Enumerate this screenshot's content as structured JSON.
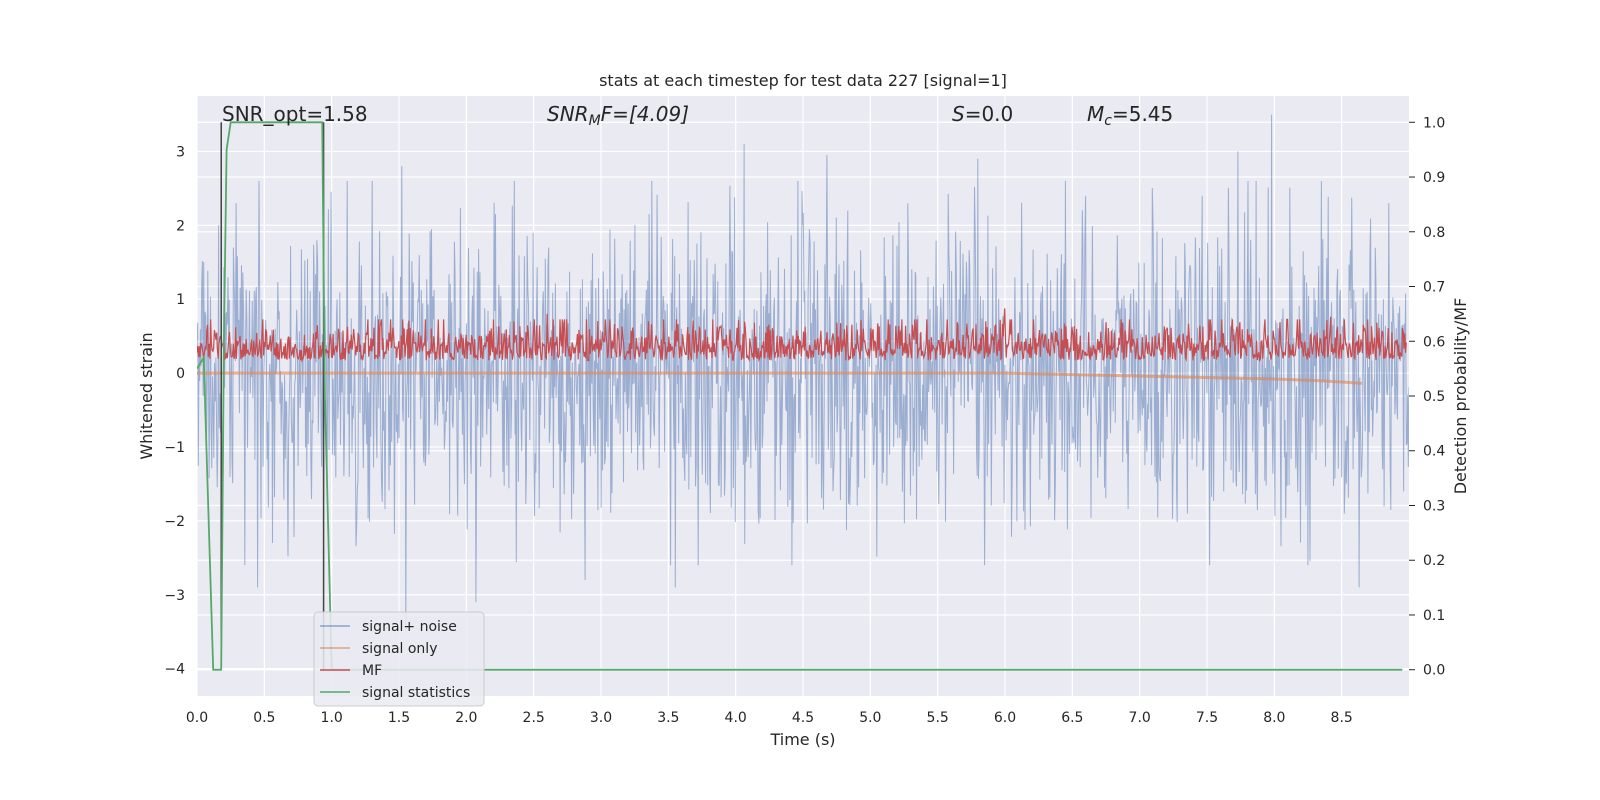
{
  "chart_data": {
    "type": "line",
    "title": "stats at each timestep for test data 227 [signal=1]",
    "xlabel": "Time (s)",
    "ylabel": "Whitened strain",
    "y2label": "Detection probability/MF",
    "xlim": [
      0.0,
      9.0
    ],
    "ylim": [
      -4.37,
      3.75
    ],
    "y2lim": [
      -0.048,
      1.048
    ],
    "x_ticks": [
      0.0,
      0.5,
      1.0,
      1.5,
      2.0,
      2.5,
      3.0,
      3.5,
      4.0,
      4.5,
      5.0,
      5.5,
      6.0,
      6.5,
      7.0,
      7.5,
      8.0,
      8.5
    ],
    "x_tick_labels": [
      "0.0",
      "0.5",
      "1.0",
      "1.5",
      "2.0",
      "2.5",
      "3.0",
      "3.5",
      "4.0",
      "4.5",
      "5.0",
      "5.5",
      "6.0",
      "6.5",
      "7.0",
      "7.5",
      "8.0",
      "8.5"
    ],
    "y_ticks": [
      3,
      2,
      1,
      0,
      -1,
      -2,
      -3,
      -4
    ],
    "y_tick_labels": [
      "3",
      "2",
      "1",
      "0",
      "−1",
      "−2",
      "−3",
      "−4"
    ],
    "y2_ticks": [
      1.0,
      0.9,
      0.8,
      0.7,
      0.6,
      0.5,
      0.4,
      0.3,
      0.2,
      0.1,
      0.0
    ],
    "y2_tick_labels": [
      "1.0",
      "0.9",
      "0.8",
      "0.7",
      "0.6",
      "0.5",
      "0.4",
      "0.3",
      "0.2",
      "0.1",
      "0.0"
    ],
    "grid": true,
    "legend_placement": "lower-left",
    "annotations": {
      "snr_opt": "SNR_opt=1.58",
      "snr_mf_main": "SNR",
      "snr_mf_sub": "M",
      "snr_mf_rest": "F=[4.09]",
      "s_label": "S",
      "s_value": "=0.0",
      "mc_label": "M",
      "mc_sub": "c",
      "mc_value": "=5.45"
    },
    "series": [
      {
        "name": "signal+ noise",
        "color": "#4c72b0",
        "axis": "left",
        "x_range": [
          0.0,
          9.0
        ],
        "typical_amplitude": 1.0,
        "peak_values": [
          {
            "x": 0.16,
            "y": 2.0
          },
          {
            "x": 0.29,
            "y": 2.3
          },
          {
            "x": 0.45,
            "y": -2.9
          },
          {
            "x": 1.52,
            "y": 2.8
          },
          {
            "x": 1.55,
            "y": -3.5
          },
          {
            "x": 2.07,
            "y": -3.1
          },
          {
            "x": 2.88,
            "y": -2.8
          },
          {
            "x": 3.55,
            "y": -2.9
          },
          {
            "x": 4.06,
            "y": 3.1
          },
          {
            "x": 4.46,
            "y": 2.6
          },
          {
            "x": 4.68,
            "y": 2.95
          },
          {
            "x": 5.8,
            "y": 2.9
          },
          {
            "x": 6.6,
            "y": 2.4
          },
          {
            "x": 7.73,
            "y": 3.0
          },
          {
            "x": 7.98,
            "y": 3.5
          },
          {
            "x": 8.63,
            "y": -2.9
          },
          {
            "x": 8.85,
            "y": 2.3
          }
        ]
      },
      {
        "name": "signal only",
        "color": "#dd8452",
        "axis": "left",
        "x": [
          0.0,
          1.0,
          2.0,
          3.0,
          4.0,
          5.0,
          6.0,
          6.5,
          7.0,
          7.5,
          8.0,
          8.3,
          8.5,
          8.65
        ],
        "y": [
          0.0,
          0.0,
          0.0,
          0.0,
          0.0,
          0.0,
          0.0,
          -0.02,
          -0.04,
          -0.06,
          -0.08,
          -0.1,
          -0.12,
          -0.14
        ]
      },
      {
        "name": "MF",
        "color": "#c44e52",
        "axis": "right",
        "typical_range": [
          0.54,
          0.64
        ],
        "peak_values": [
          {
            "x": 0.08,
            "y": 0.63
          },
          {
            "x": 1.83,
            "y": 0.64
          },
          {
            "x": 2.6,
            "y": 0.65
          },
          {
            "x": 6.0,
            "y": 0.66
          },
          {
            "x": 8.42,
            "y": 0.645
          }
        ]
      },
      {
        "name": "signal statistics",
        "color": "#55a868",
        "axis": "right",
        "x": [
          0.0,
          0.05,
          0.12,
          0.18,
          0.2,
          0.22,
          0.25,
          0.3,
          0.5,
          0.7,
          0.93,
          0.95,
          1.0,
          1.2,
          2.0,
          4.0,
          6.0,
          8.0,
          8.95
        ],
        "y": [
          0.55,
          0.57,
          0.0,
          0.0,
          0.6,
          0.95,
          1.0,
          1.0,
          1.0,
          1.0,
          1.0,
          0.5,
          0.0,
          0.0,
          0.0,
          0.0,
          0.0,
          0.0,
          0.0
        ]
      }
    ],
    "vertical_markers": [
      {
        "x": 0.18,
        "color": "#444444"
      },
      {
        "x": 0.94,
        "color": "#444444"
      }
    ]
  }
}
